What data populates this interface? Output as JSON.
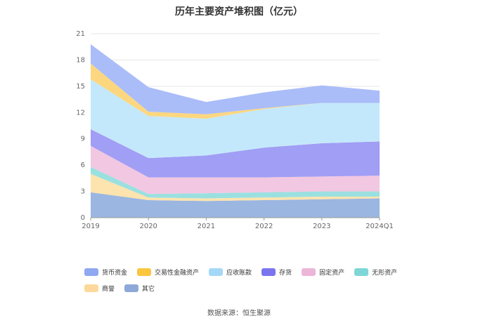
{
  "chart_data": {
    "type": "area",
    "stacked": true,
    "title": "历年主要资产堆积图（亿元）",
    "categories": [
      "2019",
      "2020",
      "2021",
      "2022",
      "2023",
      "2024Q1"
    ],
    "ylim": [
      0,
      21
    ],
    "yticks": [
      0,
      3,
      6,
      9,
      12,
      15,
      18,
      21
    ],
    "grid": true,
    "legend_position": "bottom",
    "series": [
      {
        "name": "其它",
        "color": "#9bb6e0",
        "values": [
          2.9,
          2.0,
          1.9,
          2.0,
          2.1,
          2.2
        ]
      },
      {
        "name": "商誉",
        "color": "#fde3ae",
        "values": [
          2.1,
          0.3,
          0.3,
          0.3,
          0.3,
          0.2
        ]
      },
      {
        "name": "无形资产",
        "color": "#9be0e0",
        "values": [
          0.8,
          0.4,
          0.6,
          0.6,
          0.6,
          0.6
        ]
      },
      {
        "name": "固定资产",
        "color": "#f2c7e2",
        "values": [
          2.4,
          1.9,
          1.8,
          1.7,
          1.7,
          1.8
        ]
      },
      {
        "name": "存货",
        "color": "#a19ef5",
        "values": [
          1.9,
          2.2,
          2.5,
          3.4,
          3.8,
          3.9
        ]
      },
      {
        "name": "应收账款",
        "color": "#c4e8fb",
        "values": [
          5.7,
          4.8,
          4.2,
          4.4,
          4.6,
          4.4
        ]
      },
      {
        "name": "交易性金融资产",
        "color": "#fcd77f",
        "values": [
          1.8,
          0.5,
          0.5,
          0.1,
          0.0,
          0.0
        ]
      },
      {
        "name": "货币资金",
        "color": "#aabdf8",
        "values": [
          2.2,
          2.8,
          1.4,
          1.8,
          2.0,
          1.4
        ]
      }
    ]
  },
  "legend": [
    {
      "name": "货币资金",
      "color": "#8ea8f2"
    },
    {
      "name": "交易性金融资产",
      "color": "#fbc63f"
    },
    {
      "name": "应收账款",
      "color": "#a5d8f7"
    },
    {
      "name": "存货",
      "color": "#7b74ef"
    },
    {
      "name": "固定资产",
      "color": "#ecb6d8"
    },
    {
      "name": "无形资产",
      "color": "#7fd6d6"
    },
    {
      "name": "商誉",
      "color": "#fcd99a"
    },
    {
      "name": "其它",
      "color": "#8ea9d8"
    }
  ],
  "source": "数据来源：恒生聚源"
}
